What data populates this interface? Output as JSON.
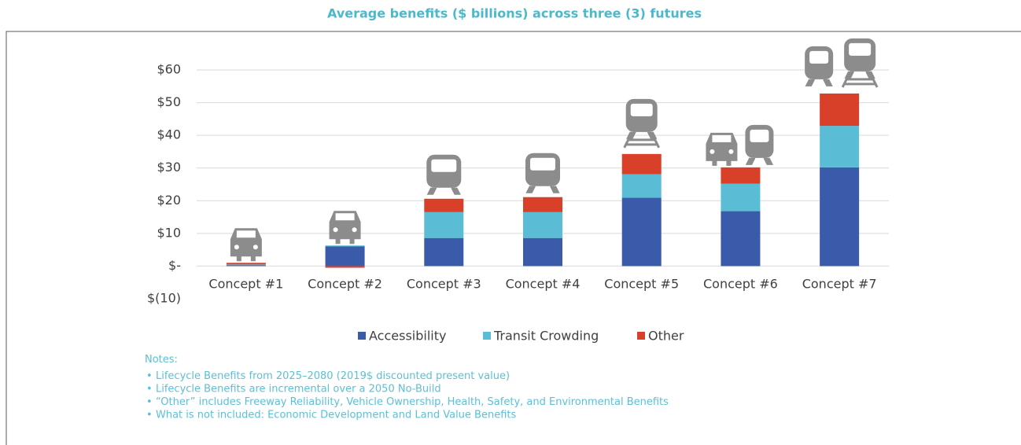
{
  "chart_data": {
    "type": "stacked-bar",
    "title": "Average benefits ($ billions) across three (3) futures",
    "categories": [
      "Concept #1",
      "Concept #2",
      "Concept #3",
      "Concept #4",
      "Concept #5",
      "Concept #6",
      "Concept #7"
    ],
    "series": [
      {
        "name": "Accessibility",
        "color": "#3a5ba9",
        "values": [
          0.3,
          6.0,
          8.6,
          8.6,
          20.9,
          16.8,
          30.2
        ]
      },
      {
        "name": "Transit Crowding",
        "color": "#5bbcd6",
        "values": [
          0.2,
          0.3,
          7.9,
          7.9,
          7.2,
          8.4,
          12.7
        ]
      },
      {
        "name": "Other",
        "color": "#d9402a",
        "values": [
          0.5,
          -0.5,
          4.1,
          4.6,
          6.2,
          5.0,
          9.9
        ]
      }
    ],
    "ylim": [
      -10,
      60
    ],
    "yticks": [
      {
        "value": -10,
        "label": "$(10)"
      },
      {
        "value": 0,
        "label": "$-"
      },
      {
        "value": 10,
        "label": "$10"
      },
      {
        "value": 20,
        "label": "$20"
      },
      {
        "value": 30,
        "label": "$30"
      },
      {
        "value": 40,
        "label": "$40"
      },
      {
        "value": 50,
        "label": "$50"
      },
      {
        "value": 60,
        "label": "$60"
      }
    ],
    "grid": true,
    "legend": "bottom",
    "notes_title": "Notes:",
    "notes": [
      "Lifecycle Benefits from 2025–2080 (2019$ discounted present value)",
      "Lifecycle Benefits are incremental over a 2050 No-Build",
      "“Other” includes Freeway Reliability, Vehicle Ownership, Health, Safety, and Environmental Benefits",
      "What is not included: Economic Development and Land Value Benefits"
    ]
  }
}
